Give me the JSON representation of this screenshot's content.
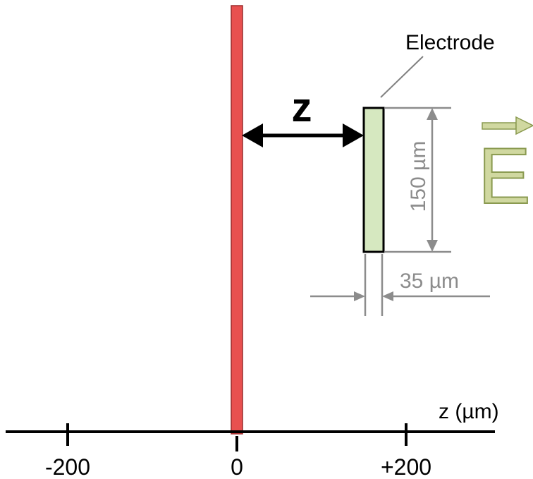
{
  "diagram": {
    "electrode_label": "Electrode",
    "distance_label": "z",
    "height_label": "150 µm",
    "width_label": "35 µm",
    "field_label": "E",
    "axis_label": "z (µm)",
    "ticks": [
      "-200",
      "0",
      "+200"
    ]
  },
  "colors": {
    "membrane": "#e8504f",
    "electrode_fill": "#d6e8c0",
    "field_fill": "#d0d8a0",
    "field_stroke": "#8a9a50",
    "dimension": "#8c8c8c"
  }
}
